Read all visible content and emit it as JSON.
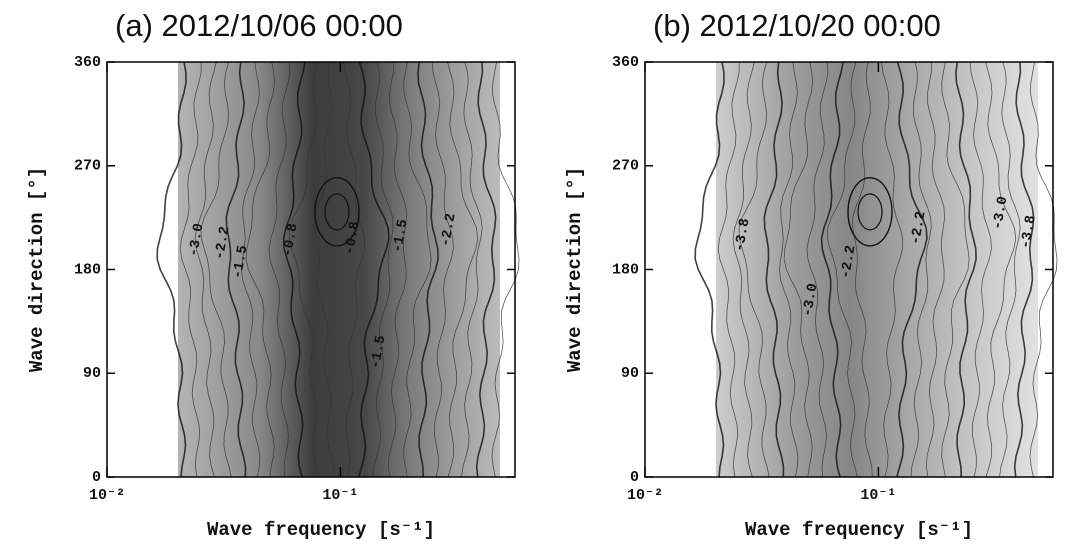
{
  "chart_data": [
    {
      "type": "contour",
      "title": "(a) 2012/10/06 00:00",
      "x_label": "Wave frequency [s⁻¹]",
      "y_label": "Wave direction [°]",
      "xscale": "log",
      "xlim": [
        0.01,
        0.56
      ],
      "xticks": [
        {
          "value": 0.01,
          "label": "10⁻²"
        },
        {
          "value": 0.1,
          "label": "10⁻¹"
        }
      ],
      "ylim": [
        0,
        360
      ],
      "yticks": [
        0,
        90,
        180,
        270,
        360
      ],
      "contour_labels": [
        {
          "value": -3.0,
          "label": "-3.0"
        },
        {
          "value": -2.2,
          "label": "-2.2"
        },
        {
          "value": -1.5,
          "label": "-1.5"
        },
        {
          "value": -0.8,
          "label": "-0.8"
        },
        {
          "value": -0.8,
          "label": "-0.8"
        },
        {
          "value": -1.5,
          "label": "-1.5"
        },
        {
          "value": -1.5,
          "label": "-1.5"
        },
        {
          "value": -2.2,
          "label": "-2.2"
        }
      ]
    },
    {
      "type": "contour",
      "title": "(b) 2012/10/20 00:00",
      "x_label": "Wave frequency [s⁻¹]",
      "y_label": "Wave direction [°]",
      "xscale": "log",
      "xlim": [
        0.01,
        0.56
      ],
      "xticks": [
        {
          "value": 0.01,
          "label": "10⁻²"
        },
        {
          "value": 0.1,
          "label": "10⁻¹"
        }
      ],
      "ylim": [
        0,
        360
      ],
      "yticks": [
        0,
        90,
        180,
        270,
        360
      ],
      "contour_labels": [
        {
          "value": -3.8,
          "label": "-3.8"
        },
        {
          "value": -3.0,
          "label": "-3.0"
        },
        {
          "value": -2.2,
          "label": "-2.2"
        },
        {
          "value": -2.2,
          "label": "-2.2"
        },
        {
          "value": -3.0,
          "label": "-3.0"
        },
        {
          "value": -3.8,
          "label": "-3.8"
        }
      ]
    }
  ]
}
